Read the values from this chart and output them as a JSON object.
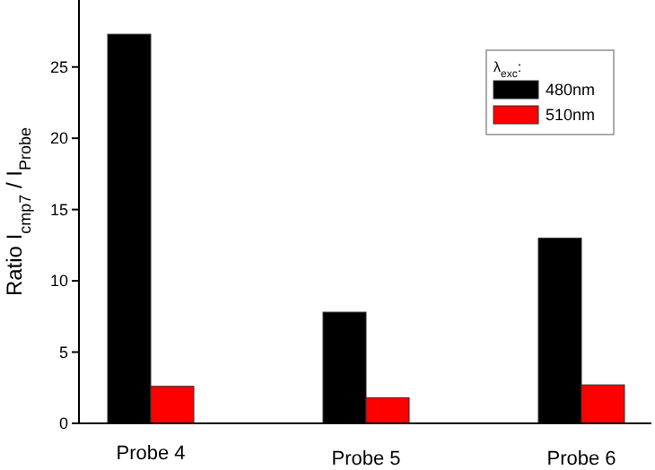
{
  "chart_data": {
    "type": "bar",
    "categories": [
      "Probe 4",
      "Probe 5",
      "Probe 6"
    ],
    "ylabel": "Ratio I$_{cmp7}$ / I$_{Probe}$",
    "legend_title": "λ$_{exc}$:",
    "series": [
      {
        "name": "480nm",
        "color": "#000000",
        "values": [
          27.3,
          7.8,
          13.0
        ]
      },
      {
        "name": "510nm",
        "color": "#ff0000",
        "values": [
          2.6,
          1.8,
          2.7
        ]
      }
    ],
    "ylim": [
      0,
      29.7
    ],
    "yticks": [
      0,
      5,
      10,
      15,
      20,
      25
    ],
    "grid": false,
    "legend": "top right"
  }
}
